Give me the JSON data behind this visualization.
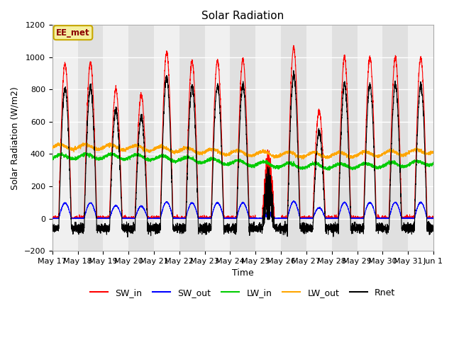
{
  "title": "Solar Radiation",
  "xlabel": "Time",
  "ylabel": "Solar Radiation (W/m2)",
  "ylim": [
    -200,
    1200
  ],
  "yticks": [
    -200,
    0,
    200,
    400,
    600,
    800,
    1000,
    1200
  ],
  "annotation_text": "EE_met",
  "annotation_box_color": "#f5f0a0",
  "annotation_text_color": "#8b0000",
  "annotation_edge_color": "#c8a800",
  "colors": {
    "SW_in": "#ff0000",
    "SW_out": "#0000ff",
    "LW_in": "#00cc00",
    "LW_out": "#ffa500",
    "Rnet": "#000000"
  },
  "plot_bg_light": "#f0f0f0",
  "plot_bg_dark": "#e0e0e0",
  "fig_bg_color": "#ffffff",
  "n_days": 15,
  "x_tick_labels": [
    "May 17",
    "May 18",
    "May 19",
    "May 20",
    "May 21",
    "May 22",
    "May 23",
    "May 24",
    "May 25",
    "May 26",
    "May 27",
    "May 28",
    "May 29",
    "May 30",
    "May 31",
    "Jun 1"
  ],
  "legend_labels": [
    "SW_in",
    "SW_out",
    "LW_in",
    "LW_out",
    "Rnet"
  ]
}
